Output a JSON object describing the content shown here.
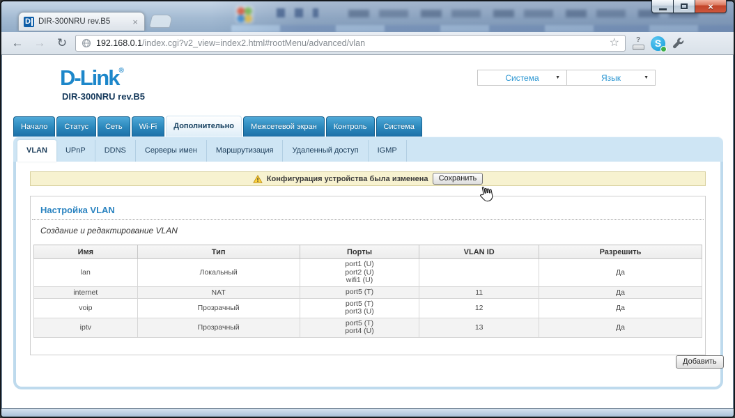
{
  "browser": {
    "tab": {
      "title": "DIR-300NRU rev.B5",
      "close_glyph": "×",
      "favicon_letter": "D"
    },
    "address": {
      "host": "192.168.0.1",
      "path": "/index.cgi?v2_view=index2.html#rootMenu/advanced/vlan"
    },
    "icons": {
      "back": "←",
      "forward": "→",
      "reload": "↻",
      "star": "☆",
      "ext_question": "?",
      "skype_letter": "S"
    }
  },
  "window_controls": {
    "close_glyph": "×"
  },
  "router": {
    "logo": {
      "brand": "D-Link",
      "reg": "®",
      "model": "DIR-300NRU rev.B5"
    },
    "top_menus": [
      {
        "label": "Система",
        "arrow": "▼"
      },
      {
        "label": "Язык",
        "arrow": "▼"
      }
    ],
    "main_tabs": [
      {
        "label": "Начало",
        "active": false
      },
      {
        "label": "Статус",
        "active": false
      },
      {
        "label": "Сеть",
        "active": false
      },
      {
        "label": "Wi-Fi",
        "active": false
      },
      {
        "label": "Дополнительно",
        "active": true
      },
      {
        "label": "Межсетевой экран",
        "active": false
      },
      {
        "label": "Контроль",
        "active": false
      },
      {
        "label": "Система",
        "active": false
      }
    ],
    "sub_tabs": [
      {
        "label": "VLAN",
        "active": true
      },
      {
        "label": "UPnP",
        "active": false
      },
      {
        "label": "DDNS",
        "active": false
      },
      {
        "label": "Серверы имен",
        "active": false
      },
      {
        "label": "Маршрутизация",
        "active": false
      },
      {
        "label": "Удаленный доступ",
        "active": false
      },
      {
        "label": "IGMP",
        "active": false
      }
    ],
    "notice": {
      "text": "Конфигурация устройства была изменена",
      "save_button": "Сохранить"
    },
    "section": {
      "title": "Настройка VLAN",
      "subtitle": "Создание и редактирование VLAN"
    },
    "vlan_table": {
      "headers": [
        "Имя",
        "Тип",
        "Порты",
        "VLAN ID",
        "Разрешить"
      ],
      "rows": [
        {
          "name": "lan",
          "type": "Локальный",
          "ports": [
            "port1 (U)",
            "port2 (U)",
            "wifi1 (U)"
          ],
          "vlan_id": "",
          "enabled": "Да"
        },
        {
          "name": "internet",
          "type": "NAT",
          "ports": [
            "port5 (T)"
          ],
          "vlan_id": "11",
          "enabled": "Да"
        },
        {
          "name": "voip",
          "type": "Прозрачный",
          "ports": [
            "port5 (T)",
            "port3 (U)"
          ],
          "vlan_id": "12",
          "enabled": "Да"
        },
        {
          "name": "iptv",
          "type": "Прозрачный",
          "ports": [
            "port5 (T)",
            "port4 (U)"
          ],
          "vlan_id": "13",
          "enabled": "Да"
        }
      ]
    },
    "add_button": "Добавить"
  },
  "colors": {
    "tab_blue_top": "#4fa9d8",
    "tab_blue_bottom": "#1d6fa7",
    "subtab_bar": "#cee5f4",
    "panel_border": "#bedaed",
    "title_blue": "#2a83c0",
    "logo_blue": "#1d87ca",
    "notice_bg": "#f7f2d0",
    "notice_border": "#d9d1a0",
    "close_red": "#c14328",
    "model_navy": "#15395b"
  }
}
